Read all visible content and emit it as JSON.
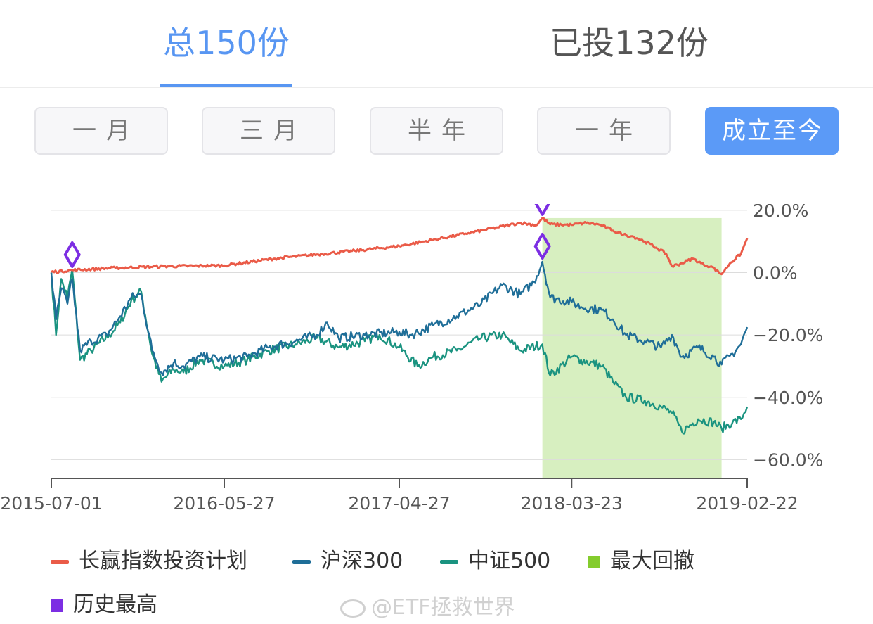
{
  "tabs": [
    {
      "label": "总150份"
    },
    {
      "label": "已投132份"
    }
  ],
  "ranges": [
    {
      "label": "一月"
    },
    {
      "label": "三月"
    },
    {
      "label": "半年"
    },
    {
      "label": "一年"
    },
    {
      "label": "成立至今"
    }
  ],
  "active_range": 4,
  "colors": {
    "plan": "#ea5b48",
    "hs300": "#1f6e98",
    "zz500": "#1a9380",
    "drawdown": "#d7efc0",
    "drawdown_legend": "#84cc2d",
    "peak": "#7c2ee3",
    "accent": "#5896f2"
  },
  "chart_data": {
    "type": "line",
    "x_ticks": [
      "2015-07-01",
      "2016-05-27",
      "2017-04-27",
      "2018-03-23",
      "2019-02-22"
    ],
    "y_ticks": [
      "20.0%",
      "0.0%",
      "-20.0%",
      "-40.0%",
      "-60.0%"
    ],
    "ylim": [
      -66,
      22
    ],
    "series": [
      {
        "name": "长赢指数投资计划",
        "color": "#ea5b48",
        "points": [
          [
            "2015-07-01",
            0.2
          ],
          [
            "2015-08-10",
            0.8
          ],
          [
            "2015-11-01",
            1.5
          ],
          [
            "2016-02-01",
            2.0
          ],
          [
            "2016-05-27",
            2.3
          ],
          [
            "2016-09-01",
            4.5
          ],
          [
            "2016-12-01",
            6.0
          ],
          [
            "2017-02-01",
            7.0
          ],
          [
            "2017-04-27",
            8.5
          ],
          [
            "2017-07-01",
            10.5
          ],
          [
            "2017-09-01",
            12.5
          ],
          [
            "2017-11-01",
            14.5
          ],
          [
            "2017-12-15",
            16.0
          ],
          [
            "2018-01-15",
            15.2
          ],
          [
            "2018-01-26",
            17.5
          ],
          [
            "2018-02-10",
            15.5
          ],
          [
            "2018-03-23",
            15.3
          ],
          [
            "2018-04-20",
            16.0
          ],
          [
            "2018-05-15",
            15.4
          ],
          [
            "2018-06-10",
            13.5
          ],
          [
            "2018-06-30",
            12.2
          ],
          [
            "2018-07-20",
            11.5
          ],
          [
            "2018-08-10",
            10.0
          ],
          [
            "2018-09-01",
            8.0
          ],
          [
            "2018-09-20",
            6.0
          ],
          [
            "2018-10-01",
            2.0
          ],
          [
            "2018-10-20",
            3.0
          ],
          [
            "2018-11-10",
            4.5
          ],
          [
            "2018-12-01",
            2.5
          ],
          [
            "2018-12-15",
            2.0
          ],
          [
            "2019-01-04",
            -0.5
          ],
          [
            "2019-01-20",
            3.0
          ],
          [
            "2019-02-10",
            6.0
          ],
          [
            "2019-02-22",
            11.0
          ]
        ]
      },
      {
        "name": "沪深300",
        "color": "#1f6e98",
        "points": [
          [
            "2015-07-01",
            0.0
          ],
          [
            "2015-07-10",
            -15.0
          ],
          [
            "2015-07-20",
            -5.0
          ],
          [
            "2015-08-01",
            -10.0
          ],
          [
            "2015-08-10",
            -2.0
          ],
          [
            "2015-08-25",
            -25.0
          ],
          [
            "2015-09-15",
            -22.0
          ],
          [
            "2015-10-15",
            -20.0
          ],
          [
            "2015-11-10",
            -14.0
          ],
          [
            "2015-12-01",
            -8.0
          ],
          [
            "2015-12-20",
            -7.0
          ],
          [
            "2016-01-10",
            -25.0
          ],
          [
            "2016-01-28",
            -32.0
          ],
          [
            "2016-02-20",
            -29.0
          ],
          [
            "2016-03-10",
            -30.0
          ],
          [
            "2016-04-10",
            -27.0
          ],
          [
            "2016-05-27",
            -28.0
          ],
          [
            "2016-07-10",
            -27.0
          ],
          [
            "2016-08-20",
            -24.0
          ],
          [
            "2016-10-10",
            -22.0
          ],
          [
            "2016-11-20",
            -20.0
          ],
          [
            "2016-12-10",
            -16.0
          ],
          [
            "2017-01-01",
            -21.0
          ],
          [
            "2017-02-20",
            -20.0
          ],
          [
            "2017-04-27",
            -19.0
          ],
          [
            "2017-05-20",
            -20.0
          ],
          [
            "2017-07-01",
            -17.0
          ],
          [
            "2017-08-15",
            -14.0
          ],
          [
            "2017-10-01",
            -10.0
          ],
          [
            "2017-11-10",
            -4.0
          ],
          [
            "2017-12-15",
            -7.0
          ],
          [
            "2018-01-10",
            -3.0
          ],
          [
            "2018-01-26",
            3.5
          ],
          [
            "2018-02-10",
            -8.0
          ],
          [
            "2018-03-23",
            -9.5
          ],
          [
            "2018-04-10",
            -11.0
          ],
          [
            "2018-05-20",
            -12.0
          ],
          [
            "2018-06-10",
            -15.0
          ],
          [
            "2018-07-05",
            -20.0
          ],
          [
            "2018-08-10",
            -22.0
          ],
          [
            "2018-09-10",
            -24.0
          ],
          [
            "2018-10-01",
            -20.0
          ],
          [
            "2018-10-20",
            -27.0
          ],
          [
            "2018-11-20",
            -24.0
          ],
          [
            "2018-12-20",
            -27.0
          ],
          [
            "2019-01-04",
            -29.5
          ],
          [
            "2019-01-25",
            -26.0
          ],
          [
            "2019-02-10",
            -23.0
          ],
          [
            "2019-02-22",
            -17.5
          ]
        ]
      },
      {
        "name": "中证500",
        "color": "#1a9380",
        "points": [
          [
            "2015-07-01",
            0.0
          ],
          [
            "2015-07-10",
            -20.0
          ],
          [
            "2015-07-20",
            -2.0
          ],
          [
            "2015-08-01",
            -8.0
          ],
          [
            "2015-08-10",
            1.0
          ],
          [
            "2015-08-25",
            -28.0
          ],
          [
            "2015-09-15",
            -25.0
          ],
          [
            "2015-10-20",
            -20.0
          ],
          [
            "2015-11-10",
            -16.0
          ],
          [
            "2015-12-01",
            -9.0
          ],
          [
            "2015-12-20",
            -6.0
          ],
          [
            "2016-01-10",
            -26.0
          ],
          [
            "2016-01-28",
            -35.0
          ],
          [
            "2016-02-20",
            -31.0
          ],
          [
            "2016-03-10",
            -32.0
          ],
          [
            "2016-04-10",
            -28.0
          ],
          [
            "2016-05-27",
            -30.0
          ],
          [
            "2016-07-10",
            -28.0
          ],
          [
            "2016-08-20",
            -25.0
          ],
          [
            "2016-10-10",
            -23.0
          ],
          [
            "2016-11-20",
            -21.0
          ],
          [
            "2017-01-01",
            -24.0
          ],
          [
            "2017-02-20",
            -22.0
          ],
          [
            "2017-03-20",
            -20.0
          ],
          [
            "2017-04-27",
            -24.0
          ],
          [
            "2017-06-01",
            -30.0
          ],
          [
            "2017-07-01",
            -27.0
          ],
          [
            "2017-08-15",
            -25.0
          ],
          [
            "2017-10-01",
            -21.0
          ],
          [
            "2017-11-10",
            -20.0
          ],
          [
            "2017-12-15",
            -25.0
          ],
          [
            "2018-01-26",
            -23.0
          ],
          [
            "2018-02-10",
            -33.0
          ],
          [
            "2018-03-23",
            -27.0
          ],
          [
            "2018-04-10",
            -28.0
          ],
          [
            "2018-05-20",
            -30.0
          ],
          [
            "2018-06-10",
            -35.0
          ],
          [
            "2018-07-05",
            -40.0
          ],
          [
            "2018-08-10",
            -41.0
          ],
          [
            "2018-09-10",
            -43.0
          ],
          [
            "2018-10-01",
            -45.0
          ],
          [
            "2018-10-20",
            -51.0
          ],
          [
            "2018-11-20",
            -47.0
          ],
          [
            "2018-12-20",
            -48.0
          ],
          [
            "2019-01-04",
            -50.0
          ],
          [
            "2019-01-25",
            -48.0
          ],
          [
            "2019-02-10",
            -47.0
          ],
          [
            "2019-02-22",
            -43.0
          ]
        ]
      }
    ],
    "drawdown": {
      "start": "2018-01-26",
      "end": "2019-01-04"
    },
    "peaks": [
      {
        "series": "长赢指数投资计划",
        "date": "2015-08-10",
        "value": 0.8
      },
      {
        "series": "长赢指数投资计划",
        "date": "2018-01-26",
        "value": 17.5
      },
      {
        "series": "沪深300",
        "date": "2018-01-26",
        "value": 3.5
      }
    ],
    "legend": [
      {
        "label": "长赢指数投资计划",
        "kind": "line",
        "color": "#ea5b48"
      },
      {
        "label": "沪深300",
        "kind": "line",
        "color": "#1f6e98"
      },
      {
        "label": "中证500",
        "kind": "line",
        "color": "#1a9380"
      },
      {
        "label": "最大回撤",
        "kind": "square",
        "color": "#84cc2d"
      },
      {
        "label": "历史最高",
        "kind": "square",
        "color": "#7c2ee3"
      }
    ]
  },
  "watermark": "@ETF拯救世界"
}
